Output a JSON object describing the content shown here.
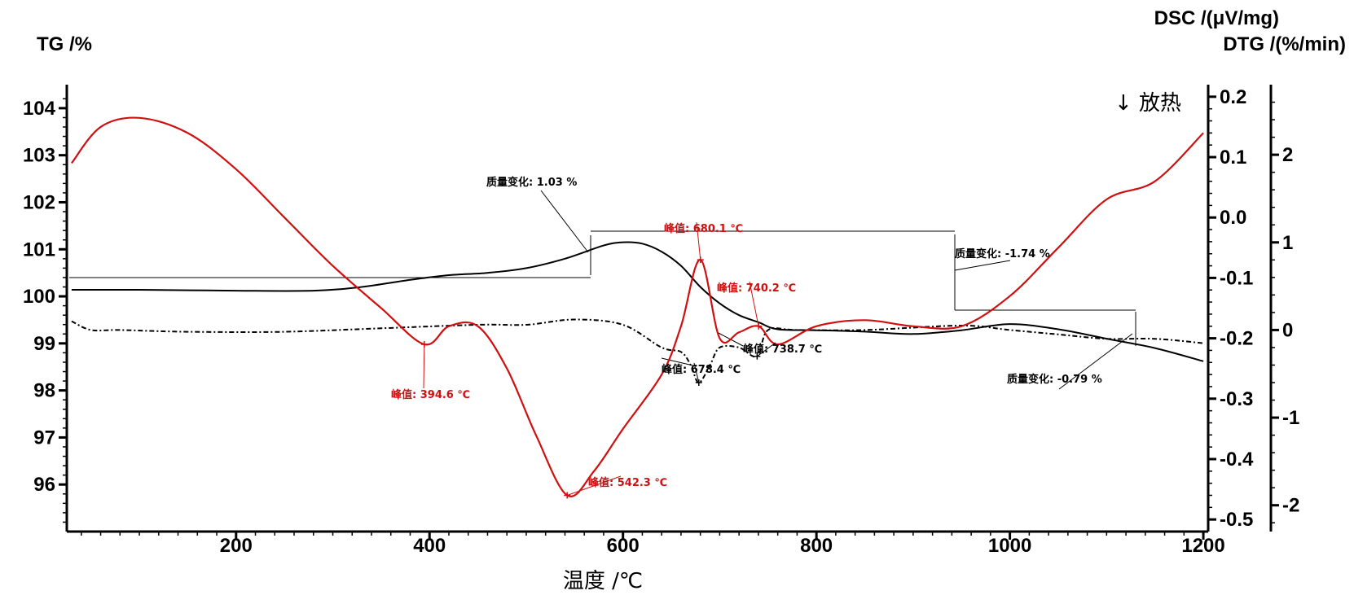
{
  "chart_data": {
    "type": "line",
    "x_axis": {
      "label": "温度 /℃",
      "min": 25,
      "max": 1205,
      "ticks": [
        200,
        400,
        600,
        800,
        1000,
        1200
      ]
    },
    "y_axes": {
      "tg": {
        "label": "TG /%",
        "min": 95.0,
        "max": 104.5,
        "ticks": [
          96,
          97,
          98,
          99,
          100,
          101,
          102,
          103,
          104
        ]
      },
      "dsc": {
        "label": "DSC /(μV/mg)",
        "min": -0.52,
        "max": 0.22,
        "ticks": [
          "0.2",
          "0.1",
          "0.0",
          "-0.1",
          "-0.2",
          "-0.3",
          "-0.4",
          "-0.5"
        ]
      },
      "dtg": {
        "label": "DTG /(%/min)",
        "min": -2.3,
        "max": 2.8,
        "ticks": [
          "2",
          "1",
          "0",
          "-1",
          "-2"
        ]
      }
    },
    "exo_label": "↓ 放热",
    "colors": {
      "tg": "#000000",
      "dtg": "#000000",
      "dsc": "#d01010"
    },
    "series": [
      {
        "name": "TG",
        "axis": "tg",
        "style": "solid",
        "x": [
          30,
          100,
          200,
          280,
          330,
          380,
          420,
          460,
          500,
          540,
          580,
          600,
          620,
          640,
          660,
          680,
          700,
          720,
          740,
          760,
          800,
          850,
          900,
          950,
          1000,
          1050,
          1100,
          1150,
          1200
        ],
        "y": [
          100.14,
          100.14,
          100.12,
          100.12,
          100.2,
          100.35,
          100.45,
          100.5,
          100.6,
          100.8,
          101.08,
          101.15,
          101.12,
          100.95,
          100.65,
          100.2,
          99.85,
          99.6,
          99.45,
          99.3,
          99.28,
          99.25,
          99.2,
          99.28,
          99.41,
          99.3,
          99.1,
          98.9,
          98.62
        ]
      },
      {
        "name": "DTG",
        "axis": "dtg",
        "style": "dash-dot",
        "x": [
          30,
          50,
          80,
          150,
          250,
          350,
          450,
          500,
          550,
          600,
          640,
          660,
          670,
          678.4,
          690,
          700,
          720,
          738.7,
          750,
          780,
          850,
          950,
          1000,
          1050,
          1100,
          1150,
          1200
        ],
        "y": [
          0.1,
          0.0,
          0.0,
          -0.02,
          -0.02,
          0.02,
          0.06,
          0.06,
          0.12,
          0.06,
          -0.2,
          -0.25,
          -0.4,
          -0.6,
          -0.4,
          -0.2,
          -0.2,
          -0.3,
          0.0,
          0.0,
          0.0,
          0.05,
          0.0,
          -0.05,
          -0.1,
          -0.1,
          -0.15
        ]
      },
      {
        "name": "DSC",
        "axis": "dsc",
        "style": "solid",
        "x": [
          30,
          60,
          100,
          150,
          200,
          250,
          300,
          350,
          394.6,
          420,
          450,
          480,
          510,
          542.3,
          570,
          600,
          640,
          660,
          680.1,
          700,
          720,
          740.2,
          760,
          800,
          850,
          900,
          950,
          1000,
          1050,
          1100,
          1150,
          1200
        ],
        "y": [
          0.09,
          0.15,
          0.165,
          0.14,
          0.08,
          0.0,
          -0.08,
          -0.15,
          -0.21,
          -0.18,
          -0.18,
          -0.25,
          -0.36,
          -0.46,
          -0.42,
          -0.35,
          -0.26,
          -0.18,
          -0.07,
          -0.2,
          -0.19,
          -0.18,
          -0.21,
          -0.18,
          -0.17,
          -0.18,
          -0.18,
          -0.13,
          -0.05,
          0.03,
          0.06,
          0.14
        ]
      }
    ],
    "annotations": [
      {
        "text": "质量变化: 1.03 %",
        "color": "black"
      },
      {
        "text": "质量变化: -1.74 %",
        "color": "black"
      },
      {
        "text": "质量变化: -0.79 %",
        "color": "black"
      },
      {
        "text": "峰值: 394.6 ℃",
        "color": "red"
      },
      {
        "text": "峰值: 542.3 ℃",
        "color": "red"
      },
      {
        "text": "峰值: 680.1 ℃",
        "color": "red"
      },
      {
        "text": "峰值: 740.2 ℃",
        "color": "red"
      },
      {
        "text": "峰值: 678.4 ℃",
        "color": "black"
      },
      {
        "text": "峰值: 738.7 ℃",
        "color": "black"
      }
    ]
  }
}
